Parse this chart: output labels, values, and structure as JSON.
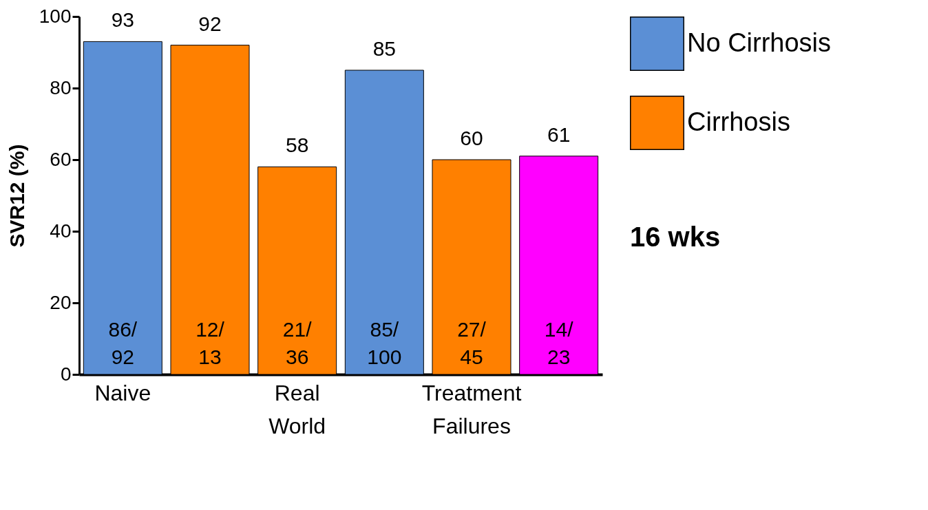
{
  "chart_data": {
    "type": "bar",
    "ylabel": "SVR12 (%)",
    "categories": [
      "Naive",
      null,
      "Real World",
      null,
      "Treatment Failures",
      null
    ],
    "series": [
      {
        "name": "No Cirrhosis",
        "color": "#5b8fd5",
        "values": [
          93,
          null,
          null,
          85,
          null,
          null
        ]
      },
      {
        "name": "Cirrhosis",
        "color": "#ff8000",
        "values": [
          null,
          92,
          58,
          null,
          60,
          null
        ]
      },
      {
        "color": "#ff00ff",
        "values": [
          null,
          null,
          null,
          null,
          null,
          61
        ]
      }
    ],
    "ylim": [
      0,
      100
    ],
    "yticks": [
      0,
      20,
      40,
      60,
      80,
      100
    ],
    "grid": false,
    "legend": "top right",
    "data_labels": true,
    "annotations": [
      "86/92",
      "12/13",
      "21/36",
      "85/100",
      "27/45",
      "14/23",
      "16 wks"
    ]
  }
}
